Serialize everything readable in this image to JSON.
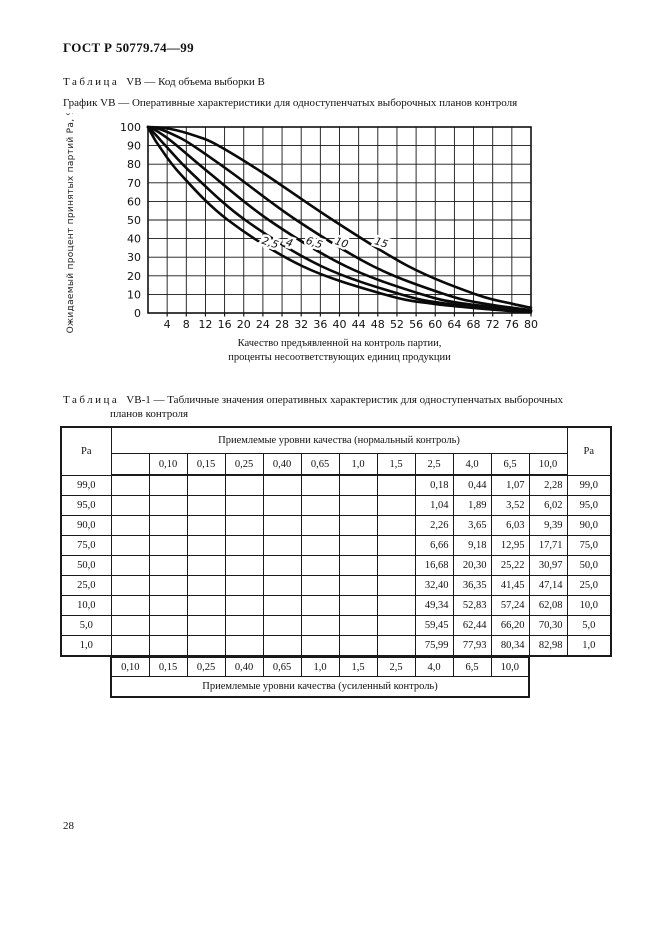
{
  "page": {
    "doc_code": "ГОСТ Р 50779.74—99",
    "page_number": "28"
  },
  "colors": {
    "ink": "#111111",
    "paper": "#ffffff"
  },
  "captions": {
    "table_vb_label": "Таблица",
    "table_vb_text": "VB — Код объема выборки В",
    "graph_caption": "График VB — Оперативные характеристики для одноступенчатых выборочных планов контроля",
    "table_vb1_label": "Таблица",
    "table_vb1_text": "VB-1 — Табличные значения оперативных характеристик для одноступенчатых выборочных",
    "table_vb1_text_line2": "планов контроля"
  },
  "chart_data": {
    "type": "line",
    "title": "График VB — Оперативные характеристики для одноступенчатых выборочных планов контроля",
    "xlabel_line1": "Качество предъявленной на контроль партии,",
    "xlabel_line2": "проценты несоответствующих единиц продукции",
    "ylabel": "Ожидаемый процент принятых партий Ра, %",
    "xlim": [
      0,
      80
    ],
    "ylim": [
      0,
      100
    ],
    "x_ticks": [
      4,
      8,
      12,
      16,
      20,
      24,
      28,
      32,
      36,
      40,
      44,
      48,
      52,
      56,
      60,
      64,
      68,
      72,
      76,
      80
    ],
    "y_ticks": [
      0,
      10,
      20,
      30,
      40,
      50,
      60,
      70,
      80,
      90,
      100
    ],
    "grid": true,
    "legend_position": "on-curve",
    "label_angle": 18,
    "series": [
      {
        "name": "2,5",
        "label_at": [
          25.3,
          36
        ],
        "points": [
          [
            0,
            100
          ],
          [
            0.18,
            99
          ],
          [
            1.04,
            95
          ],
          [
            2.26,
            90
          ],
          [
            6.66,
            75
          ],
          [
            16.68,
            50
          ],
          [
            32.4,
            25
          ],
          [
            49.34,
            10
          ],
          [
            59.45,
            5
          ],
          [
            75.99,
            1
          ],
          [
            80,
            0.7
          ]
        ]
      },
      {
        "name": "4",
        "label_at": [
          29.3,
          36
        ],
        "points": [
          [
            0,
            100
          ],
          [
            0.44,
            99
          ],
          [
            1.89,
            95
          ],
          [
            3.65,
            90
          ],
          [
            9.18,
            75
          ],
          [
            20.3,
            50
          ],
          [
            36.35,
            25
          ],
          [
            52.83,
            10
          ],
          [
            62.44,
            5
          ],
          [
            77.93,
            1
          ],
          [
            80,
            0.8
          ]
        ]
      },
      {
        "name": "6,5",
        "label_at": [
          34.5,
          36
        ],
        "points": [
          [
            0,
            100
          ],
          [
            1.07,
            99
          ],
          [
            3.52,
            95
          ],
          [
            6.03,
            90
          ],
          [
            12.95,
            75
          ],
          [
            25.22,
            50
          ],
          [
            41.45,
            25
          ],
          [
            57.24,
            10
          ],
          [
            66.2,
            5
          ],
          [
            80,
            1.1
          ]
        ]
      },
      {
        "name": "10",
        "label_at": [
          40.2,
          36
        ],
        "points": [
          [
            0,
            100
          ],
          [
            2.28,
            99
          ],
          [
            6.02,
            95
          ],
          [
            9.39,
            90
          ],
          [
            17.71,
            75
          ],
          [
            30.97,
            50
          ],
          [
            47.14,
            25
          ],
          [
            62.08,
            10
          ],
          [
            70.3,
            5
          ],
          [
            80,
            1.5
          ]
        ]
      },
      {
        "name": "15",
        "label_at": [
          48.5,
          36
        ],
        "points": [
          [
            0,
            100
          ],
          [
            4.6,
            99
          ],
          [
            10.2,
            95
          ],
          [
            14.7,
            90
          ],
          [
            24.2,
            75
          ],
          [
            38.6,
            50
          ],
          [
            54.5,
            25
          ],
          [
            68.5,
            10
          ],
          [
            76,
            5
          ],
          [
            80,
            2.8
          ]
        ]
      }
    ]
  },
  "table_vb1": {
    "corner_header": "Ра",
    "normal_header": "Приемлемые уровни качества (нормальный контроль)",
    "tightened_header": "Приемлемые уровни качества (усиленный контроль)",
    "normal_aql": [
      "",
      "0,10",
      "0,15",
      "0,25",
      "0,40",
      "0,65",
      "1,0",
      "1,5",
      "2,5",
      "4,0",
      "6,5",
      "10,0"
    ],
    "tightened_aql": [
      "0,10",
      "0,15",
      "0,25",
      "0,40",
      "0,65",
      "1,0",
      "1,5",
      "2,5",
      "4,0",
      "6,5",
      "10,0"
    ],
    "rows": [
      {
        "pa": "99,0",
        "cells": [
          "",
          "",
          "",
          "",
          "",
          "",
          "",
          "",
          "0,18",
          "0,44",
          "1,07",
          "2,28"
        ]
      },
      {
        "pa": "95,0",
        "cells": [
          "",
          "",
          "",
          "",
          "",
          "",
          "",
          "",
          "1,04",
          "1,89",
          "3,52",
          "6,02"
        ]
      },
      {
        "pa": "90,0",
        "cells": [
          "",
          "",
          "",
          "",
          "",
          "",
          "",
          "",
          "2,26",
          "3,65",
          "6,03",
          "9,39"
        ]
      },
      {
        "pa": "75,0",
        "cells": [
          "",
          "",
          "",
          "",
          "",
          "",
          "",
          "",
          "6,66",
          "9,18",
          "12,95",
          "17,71"
        ]
      },
      {
        "pa": "50,0",
        "cells": [
          "",
          "",
          "",
          "",
          "",
          "",
          "",
          "",
          "16,68",
          "20,30",
          "25,22",
          "30,97"
        ]
      },
      {
        "pa": "25,0",
        "cells": [
          "",
          "",
          "",
          "",
          "",
          "",
          "",
          "",
          "32,40",
          "36,35",
          "41,45",
          "47,14"
        ]
      },
      {
        "pa": "10,0",
        "cells": [
          "",
          "",
          "",
          "",
          "",
          "",
          "",
          "",
          "49,34",
          "52,83",
          "57,24",
          "62,08"
        ]
      },
      {
        "pa": "5,0",
        "cells": [
          "",
          "",
          "",
          "",
          "",
          "",
          "",
          "",
          "59,45",
          "62,44",
          "66,20",
          "70,30"
        ]
      },
      {
        "pa": "1,0",
        "cells": [
          "",
          "",
          "",
          "",
          "",
          "",
          "",
          "",
          "75,99",
          "77,93",
          "80,34",
          "82,98"
        ]
      }
    ]
  }
}
